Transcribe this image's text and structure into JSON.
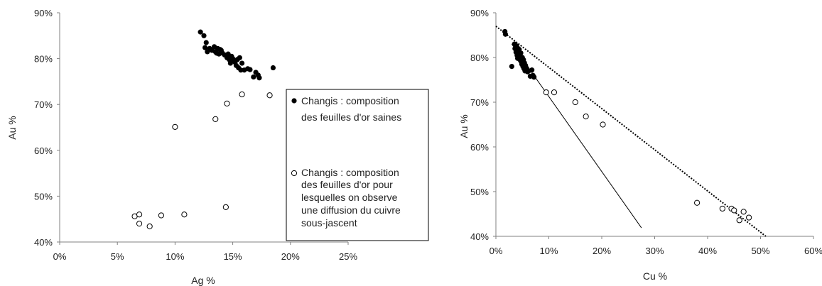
{
  "chart_data": [
    {
      "type": "scatter",
      "xlabel": "Ag %",
      "ylabel": "Au %",
      "xlim": [
        0,
        0.25
      ],
      "ylim": [
        0.4,
        0.9
      ],
      "xticks": [
        "0%",
        "5%",
        "10%",
        "15%",
        "20%",
        "25%"
      ],
      "yticks": [
        "40%",
        "50%",
        "60%",
        "70%",
        "80%",
        "90%"
      ],
      "legend_position": "right",
      "series": [
        {
          "name": "Changis : composition des feuilles d'or saines",
          "marker": "filled-circle",
          "color": "#000000",
          "points": [
            [
              0.122,
              0.858
            ],
            [
              0.125,
              0.85
            ],
            [
              0.127,
              0.835
            ],
            [
              0.126,
              0.824
            ],
            [
              0.128,
              0.815
            ],
            [
              0.13,
              0.822
            ],
            [
              0.132,
              0.818
            ],
            [
              0.134,
              0.826
            ],
            [
              0.135,
              0.815
            ],
            [
              0.136,
              0.812
            ],
            [
              0.137,
              0.822
            ],
            [
              0.138,
              0.81
            ],
            [
              0.139,
              0.82
            ],
            [
              0.14,
              0.818
            ],
            [
              0.141,
              0.812
            ],
            [
              0.143,
              0.808
            ],
            [
              0.145,
              0.802
            ],
            [
              0.146,
              0.81
            ],
            [
              0.147,
              0.798
            ],
            [
              0.148,
              0.79
            ],
            [
              0.149,
              0.805
            ],
            [
              0.15,
              0.8
            ],
            [
              0.151,
              0.795
            ],
            [
              0.152,
              0.792
            ],
            [
              0.153,
              0.785
            ],
            [
              0.154,
              0.798
            ],
            [
              0.155,
              0.78
            ],
            [
              0.156,
              0.802
            ],
            [
              0.157,
              0.775
            ],
            [
              0.158,
              0.79
            ],
            [
              0.16,
              0.775
            ],
            [
              0.163,
              0.778
            ],
            [
              0.165,
              0.776
            ],
            [
              0.168,
              0.76
            ],
            [
              0.17,
              0.77
            ],
            [
              0.172,
              0.764
            ],
            [
              0.173,
              0.758
            ],
            [
              0.185,
              0.78
            ]
          ]
        },
        {
          "name": "Changis : composition des feuilles d'or pour lesquelles on observe une diffusion du cuivre sous-jascent",
          "marker": "open-circle",
          "color": "#000000",
          "points": [
            [
              0.158,
              0.722
            ],
            [
              0.182,
              0.72
            ],
            [
              0.145,
              0.702
            ],
            [
              0.135,
              0.668
            ],
            [
              0.1,
              0.651
            ],
            [
              0.144,
              0.476
            ],
            [
              0.065,
              0.456
            ],
            [
              0.069,
              0.46
            ],
            [
              0.088,
              0.458
            ],
            [
              0.108,
              0.46
            ],
            [
              0.069,
              0.44
            ],
            [
              0.078,
              0.434
            ]
          ]
        }
      ]
    },
    {
      "type": "scatter",
      "xlabel": "Cu %",
      "ylabel": "Au %",
      "xlim": [
        0,
        0.6
      ],
      "ylim": [
        0.4,
        0.9
      ],
      "xticks": [
        "0%",
        "10%",
        "20%",
        "30%",
        "40%",
        "50%",
        "60%"
      ],
      "yticks": [
        "40%",
        "50%",
        "60%",
        "70%",
        "80%",
        "90%"
      ],
      "series": [
        {
          "marker": "filled-circle",
          "color": "#000000",
          "points": [
            [
              0.017,
              0.858
            ],
            [
              0.018,
              0.852
            ],
            [
              0.035,
              0.83
            ],
            [
              0.036,
              0.82
            ],
            [
              0.038,
              0.812
            ],
            [
              0.04,
              0.805
            ],
            [
              0.041,
              0.798
            ],
            [
              0.042,
              0.82
            ],
            [
              0.043,
              0.815
            ],
            [
              0.044,
              0.808
            ],
            [
              0.045,
              0.8
            ],
            [
              0.046,
              0.794
            ],
            [
              0.047,
              0.81
            ],
            [
              0.048,
              0.79
            ],
            [
              0.049,
              0.785
            ],
            [
              0.05,
              0.8
            ],
            [
              0.051,
              0.78
            ],
            [
              0.052,
              0.795
            ],
            [
              0.053,
              0.775
            ],
            [
              0.054,
              0.788
            ],
            [
              0.055,
              0.77
            ],
            [
              0.056,
              0.782
            ],
            [
              0.058,
              0.776
            ],
            [
              0.06,
              0.768
            ],
            [
              0.062,
              0.77
            ],
            [
              0.065,
              0.758
            ],
            [
              0.068,
              0.772
            ],
            [
              0.07,
              0.76
            ],
            [
              0.072,
              0.756
            ],
            [
              0.03,
              0.78
            ],
            [
              0.039,
              0.826
            ],
            [
              0.044,
              0.818
            ]
          ]
        },
        {
          "marker": "open-circle",
          "color": "#000000",
          "points": [
            [
              0.095,
              0.722
            ],
            [
              0.11,
              0.722
            ],
            [
              0.15,
              0.7
            ],
            [
              0.17,
              0.668
            ],
            [
              0.202,
              0.65
            ],
            [
              0.38,
              0.475
            ],
            [
              0.428,
              0.462
            ],
            [
              0.445,
              0.462
            ],
            [
              0.45,
              0.458
            ],
            [
              0.46,
              0.436
            ],
            [
              0.468,
              0.455
            ],
            [
              0.478,
              0.442
            ]
          ]
        }
      ],
      "lines": [
        {
          "style": "dotted",
          "x1": 0.0,
          "y1": 0.87,
          "x2": 0.51,
          "y2": 0.4
        },
        {
          "style": "solid",
          "x1": 0.03,
          "y1": 0.83,
          "x2": 0.275,
          "y2": 0.419
        }
      ]
    }
  ]
}
